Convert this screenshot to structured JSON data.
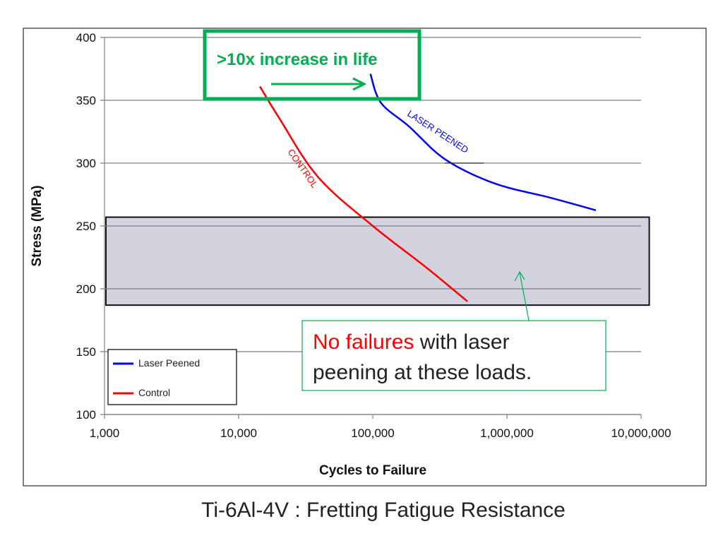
{
  "chart_data": {
    "type": "line",
    "title": "Ti-6Al-4V : Fretting Fatigue Resistance",
    "xlabel": "Cycles to Failure",
    "ylabel": "Stress (MPa)",
    "x_scale": "log",
    "xlim": [
      1000,
      10000000
    ],
    "ylim": [
      100,
      400
    ],
    "x_ticks": [
      1000,
      10000,
      100000,
      1000000,
      10000000
    ],
    "x_tick_labels": [
      "1,000",
      "10,000",
      "100,000",
      "1,000,000",
      "10,000,000"
    ],
    "y_ticks": [
      100,
      150,
      200,
      250,
      300,
      350,
      400
    ],
    "y_tick_labels": [
      "100",
      "150",
      "200",
      "250",
      "300",
      "350",
      "400"
    ],
    "grid": "horizontal",
    "legend_position": "bottom-left",
    "series": [
      {
        "name": "Laser Peened",
        "color": "#0000ff",
        "label": "LASER PEENED",
        "x": [
          96000,
          115000,
          187000,
          346000,
          800000,
          2100000,
          4600000
        ],
        "y": [
          371,
          348,
          329,
          303,
          284,
          272.5,
          262.5
        ]
      },
      {
        "name": "Control",
        "color": "#ff0000",
        "label": "CONTROL",
        "x": [
          14400,
          20000,
          39000,
          100000,
          250000,
          507000
        ],
        "y": [
          361,
          336,
          289,
          250,
          217,
          190
        ]
      }
    ],
    "shaded_band": {
      "x": [
        1000,
        11500000
      ],
      "y": [
        187,
        257
      ],
      "color": "#d3d3e0"
    },
    "annotations": [
      {
        "text": ">10x increase in life",
        "color": "#00b050"
      },
      {
        "text_highlight": "No failures",
        "highlight_color": "#ff0000",
        "text_line1_rest": " with laser",
        "text_line2": "peening at these loads.",
        "border_color": "#00b050"
      }
    ]
  }
}
